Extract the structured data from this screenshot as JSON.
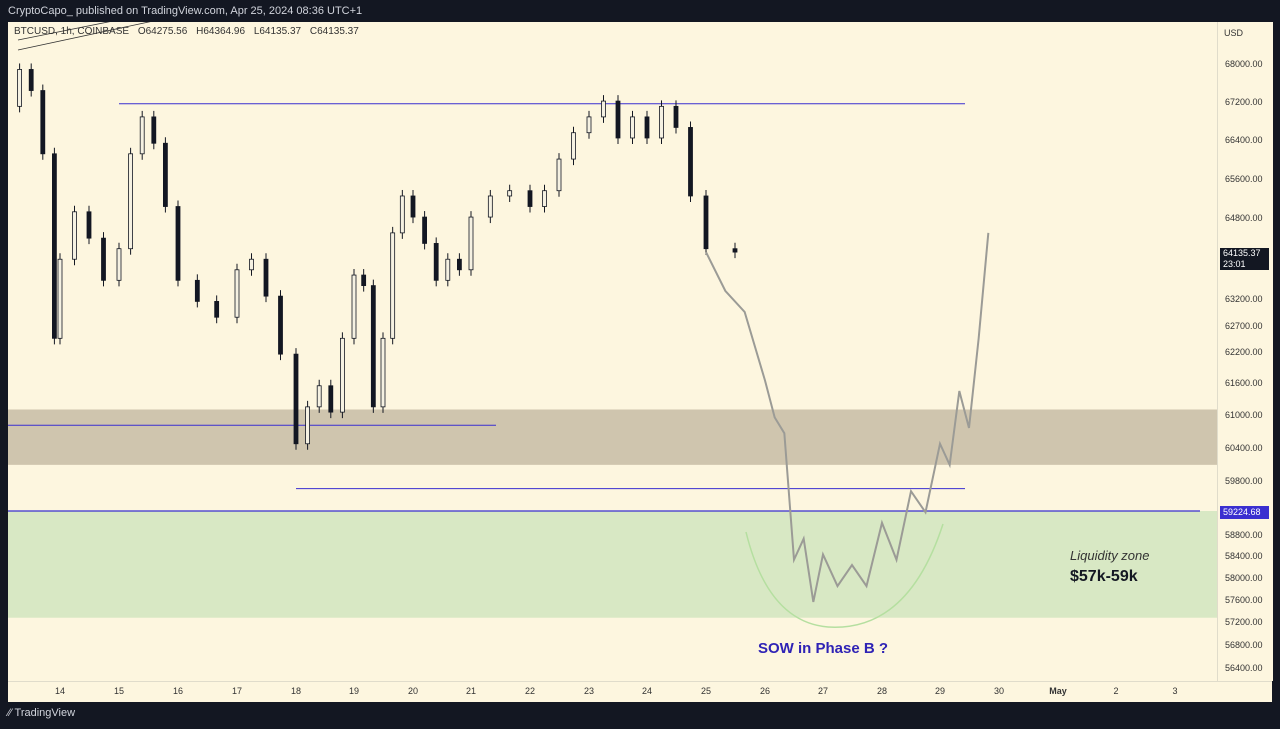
{
  "header": {
    "publisher": "CryptoCapo_ published on TradingView.com, Apr 25, 2024 08:36 UTC+1"
  },
  "legend": {
    "symbol": "BTCUSD, 1h, COINBASE",
    "open": "O64275.56",
    "high": "H64364.96",
    "low": "L64135.37",
    "close": "C64135.37"
  },
  "axis": {
    "currency": "USD",
    "y_ticks": [
      "68000.00",
      "67200.00",
      "66400.00",
      "65600.00",
      "64800.00",
      "63200.00",
      "62700.00",
      "62200.00",
      "61600.00",
      "61000.00",
      "60400.00",
      "59800.00",
      "58800.00",
      "58400.00",
      "58000.00",
      "57600.00",
      "57200.00",
      "56800.00",
      "56400.00"
    ],
    "x_ticks": [
      "14",
      "15",
      "16",
      "17",
      "18",
      "19",
      "20",
      "21",
      "22",
      "23",
      "24",
      "25",
      "26",
      "27",
      "28",
      "29",
      "30",
      "May",
      "2",
      "3"
    ]
  },
  "price_tags": {
    "current": {
      "price": "64135.37",
      "time": "23:01",
      "color": "#131722"
    },
    "level": {
      "price": "59224.68",
      "color": "#3a2fd0"
    }
  },
  "annotations": {
    "zone_title": "Liquidity zone",
    "zone_range": "$57k-59k",
    "phase": "SOW in Phase B ?",
    "phase_color": "#2f23b5"
  },
  "brand": "TradingView",
  "chart_data": {
    "type": "candlestick",
    "symbol": "BTCUSD",
    "interval": "1h",
    "exchange": "COINBASE",
    "ylim": [
      56000,
      68500
    ],
    "zones": [
      {
        "kind": "resistance_box",
        "from": 60100,
        "to": 61150,
        "color": "#cfc5ae"
      },
      {
        "kind": "liquidity_zone",
        "from": 57200,
        "to": 59224.68,
        "color": "#d8e8c4"
      }
    ],
    "levels": [
      {
        "price": 66950,
        "from": "Apr 15",
        "to": "Apr 29",
        "color": "#3a2fd0"
      },
      {
        "price": 60850,
        "from": "Apr 13",
        "to": "Apr 21",
        "color": "#3a2fd0"
      },
      {
        "price": 59650,
        "from": "Apr 18",
        "to": "Apr 29",
        "color": "#3a2fd0"
      },
      {
        "price": 59224.68,
        "from": "Apr 13",
        "to": "May 3",
        "color": "#3a2fd0"
      }
    ],
    "price_path": [
      [
        "Apr 13",
        66900
      ],
      [
        "Apr 13",
        67600
      ],
      [
        "Apr 13",
        67200
      ],
      [
        "Apr 13",
        66000
      ],
      [
        "Apr 13",
        62500
      ],
      [
        "Apr 14",
        64000
      ],
      [
        "Apr 14",
        64900
      ],
      [
        "Apr 14",
        64400
      ],
      [
        "Apr 14",
        63600
      ],
      [
        "Apr 15",
        64200
      ],
      [
        "Apr 15",
        66000
      ],
      [
        "Apr 15",
        66700
      ],
      [
        "Apr 15",
        66200
      ],
      [
        "Apr 15",
        65000
      ],
      [
        "Apr 16",
        63600
      ],
      [
        "Apr 16",
        63200
      ],
      [
        "Apr 16",
        62900
      ],
      [
        "Apr 17",
        63800
      ],
      [
        "Apr 17",
        64000
      ],
      [
        "Apr 17",
        63300
      ],
      [
        "Apr 17",
        62200
      ],
      [
        "Apr 18",
        60500
      ],
      [
        "Apr 18",
        61200
      ],
      [
        "Apr 18",
        61600
      ],
      [
        "Apr 18",
        61100
      ],
      [
        "Apr 18",
        62500
      ],
      [
        "Apr 19",
        63700
      ],
      [
        "Apr 19",
        63500
      ],
      [
        "Apr 19",
        61200
      ],
      [
        "Apr 19",
        62500
      ],
      [
        "Apr 19",
        64500
      ],
      [
        "Apr 19",
        65200
      ],
      [
        "Apr 20",
        64800
      ],
      [
        "Apr 20",
        64300
      ],
      [
        "Apr 20",
        63600
      ],
      [
        "Apr 20",
        64000
      ],
      [
        "Apr 20",
        63800
      ],
      [
        "Apr 21",
        64800
      ],
      [
        "Apr 21",
        65200
      ],
      [
        "Apr 21",
        65300
      ],
      [
        "Apr 22",
        65000
      ],
      [
        "Apr 22",
        65300
      ],
      [
        "Apr 22",
        65900
      ],
      [
        "Apr 22",
        66400
      ],
      [
        "Apr 23",
        66700
      ],
      [
        "Apr 23",
        67000
      ],
      [
        "Apr 23",
        66300
      ],
      [
        "Apr 23",
        66700
      ],
      [
        "Apr 24",
        66300
      ],
      [
        "Apr 24",
        66900
      ],
      [
        "Apr 24",
        66500
      ],
      [
        "Apr 24",
        65200
      ],
      [
        "Apr 25",
        64200
      ],
      [
        "Apr 25",
        64135.37
      ]
    ],
    "projection": [
      [
        "Apr 25",
        64135
      ],
      [
        "Apr 25",
        63400
      ],
      [
        "Apr 25",
        63000
      ],
      [
        "Apr 26",
        61700
      ],
      [
        "Apr 26",
        61000
      ],
      [
        "Apr 26",
        60700
      ],
      [
        "Apr 26",
        58300
      ],
      [
        "Apr 26",
        58700
      ],
      [
        "Apr 26",
        57500
      ],
      [
        "Apr 27",
        58400
      ],
      [
        "Apr 27",
        57800
      ],
      [
        "Apr 27",
        58200
      ],
      [
        "Apr 27",
        57800
      ],
      [
        "Apr 28",
        59000
      ],
      [
        "Apr 28",
        58300
      ],
      [
        "Apr 28",
        59600
      ],
      [
        "Apr 28",
        59200
      ],
      [
        "Apr 29",
        60500
      ],
      [
        "Apr 29",
        60100
      ],
      [
        "Apr 29",
        61500
      ],
      [
        "Apr 29",
        60800
      ],
      [
        "Apr 29",
        62500
      ],
      [
        "Apr 29",
        64500
      ]
    ]
  }
}
